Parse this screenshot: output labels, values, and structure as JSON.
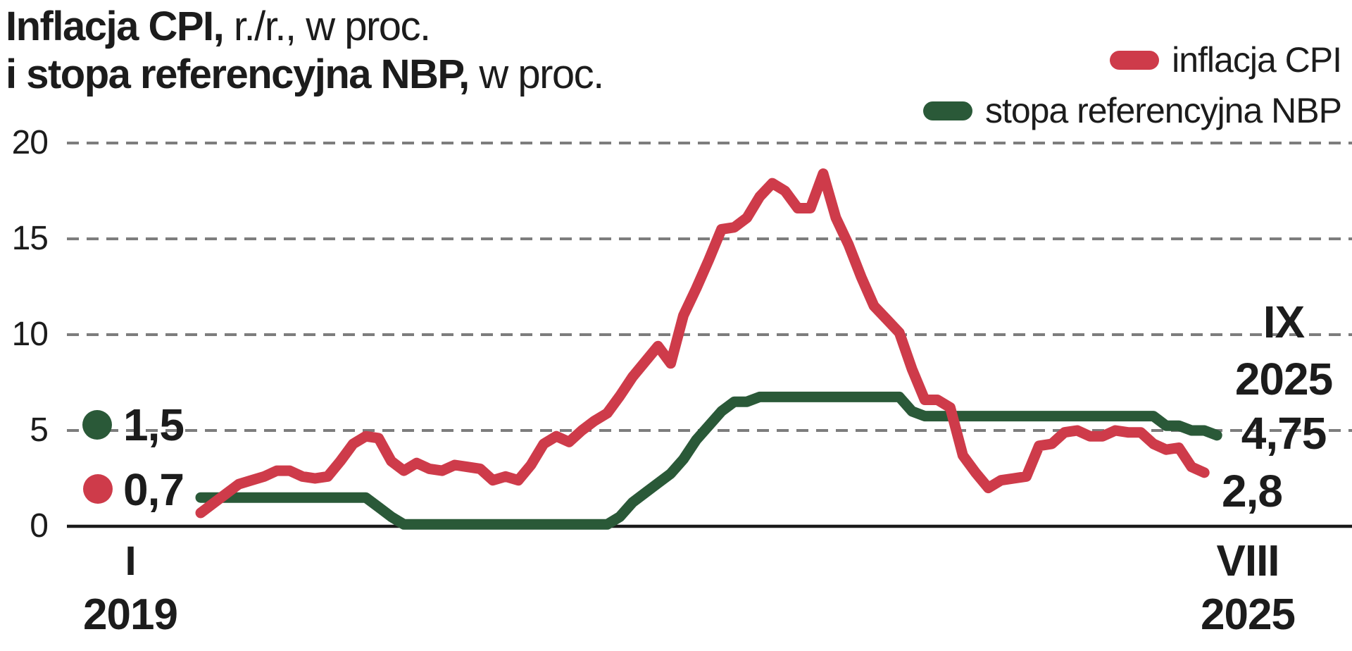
{
  "title": {
    "line1_bold": "Inflacja CPI,",
    "line1_rest": " r./r., w proc.",
    "line2_bold": "i stopa referencyjna NBP,",
    "line2_rest": " w proc."
  },
  "legend": [
    {
      "label": "inflacja CPI",
      "color": "#ce3b4a"
    },
    {
      "label": "stopa referencyjna NBP",
      "color": "#2a5938"
    }
  ],
  "annotations": {
    "start_rate": "1,5",
    "start_cpi": "0,7",
    "end_month": "IX",
    "end_year": "2025",
    "end_rate": "4,75",
    "end_cpi": "2,8"
  },
  "x_axis": {
    "left_month": "I",
    "left_year": "2019",
    "right_month": "VIII",
    "right_year": "2025"
  },
  "colors": {
    "cpi": "#ce3b4a",
    "rate": "#2a5938",
    "grid": "#7d7d7d",
    "axis": "#1a1a1a"
  },
  "chart_data": {
    "type": "line",
    "title": "Inflacja CPI, r./r., w proc. i stopa referencyjna NBP, w proc.",
    "x_start": "2019-01",
    "x_step": "month",
    "ylim": [
      0,
      20
    ],
    "yticks": [
      0,
      5,
      10,
      15,
      20
    ],
    "grid": "dashed-horizontal",
    "legend_position": "top-right",
    "series": [
      {
        "name": "stopa referencyjna NBP",
        "color": "#2a5938",
        "end": "2025-09",
        "last_value_label": "4,75",
        "values": [
          1.5,
          1.5,
          1.5,
          1.5,
          1.5,
          1.5,
          1.5,
          1.5,
          1.5,
          1.5,
          1.5,
          1.5,
          1.5,
          1.5,
          1.0,
          0.5,
          0.1,
          0.1,
          0.1,
          0.1,
          0.1,
          0.1,
          0.1,
          0.1,
          0.1,
          0.1,
          0.1,
          0.1,
          0.1,
          0.1,
          0.1,
          0.1,
          0.1,
          0.5,
          1.25,
          1.75,
          2.25,
          2.75,
          3.5,
          4.5,
          5.25,
          6.0,
          6.5,
          6.5,
          6.75,
          6.75,
          6.75,
          6.75,
          6.75,
          6.75,
          6.75,
          6.75,
          6.75,
          6.75,
          6.75,
          6.75,
          6.0,
          5.75,
          5.75,
          5.75,
          5.75,
          5.75,
          5.75,
          5.75,
          5.75,
          5.75,
          5.75,
          5.75,
          5.75,
          5.75,
          5.75,
          5.75,
          5.75,
          5.75,
          5.75,
          5.75,
          5.25,
          5.25,
          5.0,
          5.0,
          4.75
        ]
      },
      {
        "name": "inflacja CPI",
        "color": "#ce3b4a",
        "end": "2025-08",
        "last_value_label": "2,8",
        "values": [
          0.7,
          1.2,
          1.7,
          2.2,
          2.4,
          2.6,
          2.9,
          2.9,
          2.6,
          2.5,
          2.6,
          3.4,
          4.3,
          4.7,
          4.6,
          3.4,
          2.9,
          3.3,
          3.0,
          2.9,
          3.2,
          3.1,
          3.0,
          2.4,
          2.6,
          2.4,
          3.2,
          4.3,
          4.7,
          4.4,
          5.0,
          5.5,
          5.9,
          6.8,
          7.8,
          8.6,
          9.4,
          8.5,
          11.0,
          12.4,
          13.9,
          15.5,
          15.6,
          16.1,
          17.2,
          17.9,
          17.5,
          16.6,
          16.6,
          18.4,
          16.1,
          14.7,
          13.0,
          11.5,
          10.8,
          10.1,
          8.2,
          6.6,
          6.6,
          6.2,
          3.7,
          2.8,
          2.0,
          2.4,
          2.5,
          2.6,
          4.2,
          4.3,
          4.9,
          5.0,
          4.7,
          4.7,
          5.0,
          4.9,
          4.9,
          4.3,
          4.0,
          4.1,
          3.1,
          2.8
        ]
      }
    ]
  }
}
